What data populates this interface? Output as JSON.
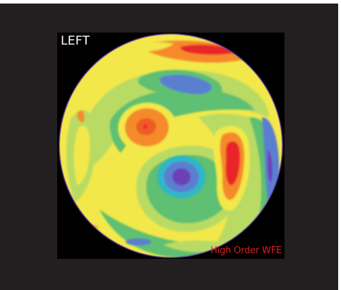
{
  "eye_label": "LEFT",
  "map_label": "High Order WFE",
  "colors": {
    "background": "#231f20",
    "panel": "#000000",
    "label_white": "#ffffff",
    "label_red": "#d81f26",
    "map_red": "#e8272a",
    "map_orange": "#f58a2b",
    "map_yellow": "#f2e84a",
    "map_light_green": "#b9db64",
    "map_green": "#5fbf72",
    "map_blue": "#5a7fd0",
    "map_violet": "#6d3fb8"
  }
}
